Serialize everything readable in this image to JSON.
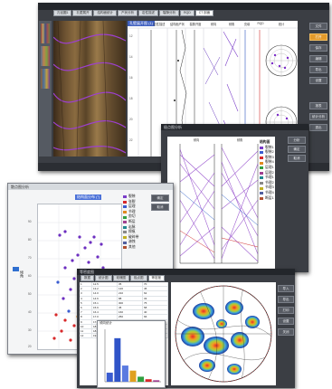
{
  "colors": {
    "dark_panel": "#3b3e44",
    "accent_orange": "#e39a2a",
    "accent_blue": "#4060c0",
    "purple": "#7a3cc8",
    "red": "#d8282a"
  },
  "main_window": {
    "tabs": [
      "孔径圆1",
      "孔壁展开",
      "结构面统计",
      "产状分析",
      "岩性描述",
      "裂隙分析",
      "RQD",
      "CT 剖面"
    ],
    "image_title": "孔壁展开图 (1)",
    "col_headers": [
      "岩性描述",
      "结构面产状",
      "裂隙开度",
      "倾向",
      "倾角",
      "充填",
      "RQD",
      "统计"
    ],
    "depth_labels": [
      "12",
      "14",
      "16",
      "18",
      "20",
      "22"
    ],
    "side_buttons": [
      "文件",
      "打开",
      "保存",
      "编辑",
      "导出",
      "设置",
      "报表",
      "统计分析",
      "退出"
    ]
  },
  "line_window": {
    "title": "极点图分析",
    "legend_title": "结构面",
    "headers": [
      "倾向",
      "倾角"
    ],
    "legend": [
      "裂隙1",
      "裂隙2",
      "裂隙3",
      "裂隙4",
      "层理1",
      "层理2",
      "节理1",
      "节理2",
      "节理3",
      "节理4",
      "断层1"
    ],
    "side_buttons": [
      "分析",
      "确定",
      "取消"
    ]
  },
  "scatter_window": {
    "title": "散点图分析",
    "chart_title": "结构面分布 (°)",
    "ylabel": "倾角",
    "legend": [
      "裂隙",
      "张裂",
      "层理",
      "节理",
      "剪切",
      "断层",
      "岩脉",
      "擦痕",
      "破碎带",
      "溶蚀",
      "其他"
    ],
    "side_buttons": [
      "确定",
      "取消"
    ],
    "y_ticks": [
      "90",
      "80",
      "70",
      "60",
      "50",
      "40",
      "30",
      "20"
    ]
  },
  "rose_window": {
    "title": "等密度图",
    "tabs": [
      "数据",
      "统计图",
      "玫瑰图",
      "极点图",
      "等密度"
    ],
    "hist_title": "倾向统计",
    "side_buttons": [
      "导入",
      "导出",
      "打印",
      "设置",
      "关闭"
    ],
    "grid_rows": [
      [
        "1",
        "12.5",
        "35",
        "70"
      ],
      [
        "2",
        "13.2",
        "120",
        "45"
      ],
      [
        "3",
        "14.0",
        "210",
        "62"
      ],
      [
        "4",
        "14.6",
        "88",
        "33"
      ],
      [
        "5",
        "15.1",
        "300",
        "75"
      ],
      [
        "6",
        "15.9",
        "45",
        "58"
      ],
      [
        "7",
        "16.4",
        "160",
        "40"
      ],
      [
        "8",
        "17.0",
        "250",
        "66"
      ],
      [
        "9",
        "17.7",
        "15",
        "52"
      ],
      [
        "10",
        "18.3",
        "330",
        "81"
      ],
      [
        "11",
        "18.9",
        "95",
        "28"
      ],
      [
        "12",
        "19.6",
        "190",
        "60"
      ]
    ]
  },
  "chart_data": {
    "type": "bar",
    "categories": [
      "1",
      "2",
      "3",
      "4",
      "5",
      "6",
      "7"
    ],
    "values": [
      18,
      86,
      32,
      22,
      10,
      5,
      3
    ],
    "title": "倾向统计",
    "ylim": [
      0,
      100
    ]
  }
}
